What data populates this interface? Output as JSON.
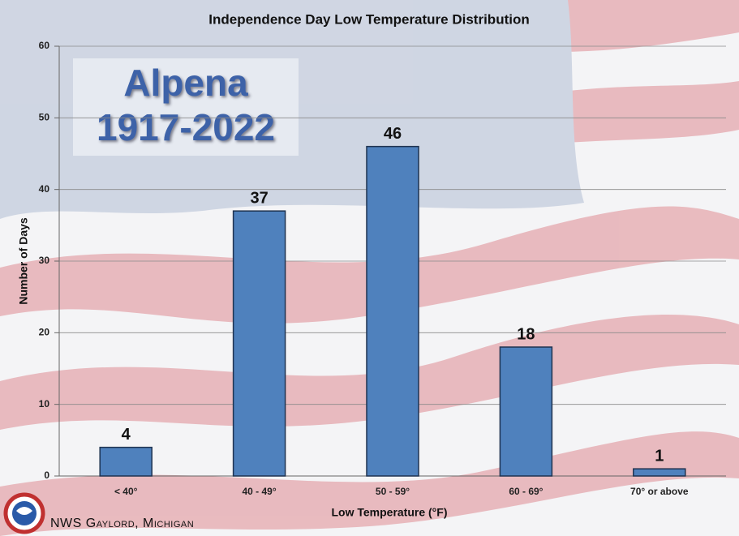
{
  "chart_data": {
    "type": "bar",
    "title": "Independence Day Low Temperature Distribution",
    "annotation": [
      "Alpena",
      "1917-2022"
    ],
    "footer": "NWS Gaylord, Michigan",
    "x_label": "Low Temperature (°F)",
    "y_label": "Number of Days",
    "categories": [
      "< 40°",
      "40 - 49°",
      "50 - 59°",
      "60 - 69°",
      "70° or above"
    ],
    "values": [
      4,
      37,
      46,
      18,
      1
    ],
    "color": "#4f81bd",
    "ylim": [
      0,
      60
    ],
    "yticks": [
      0,
      10,
      20,
      30,
      40,
      50,
      60
    ],
    "grid": true
  }
}
